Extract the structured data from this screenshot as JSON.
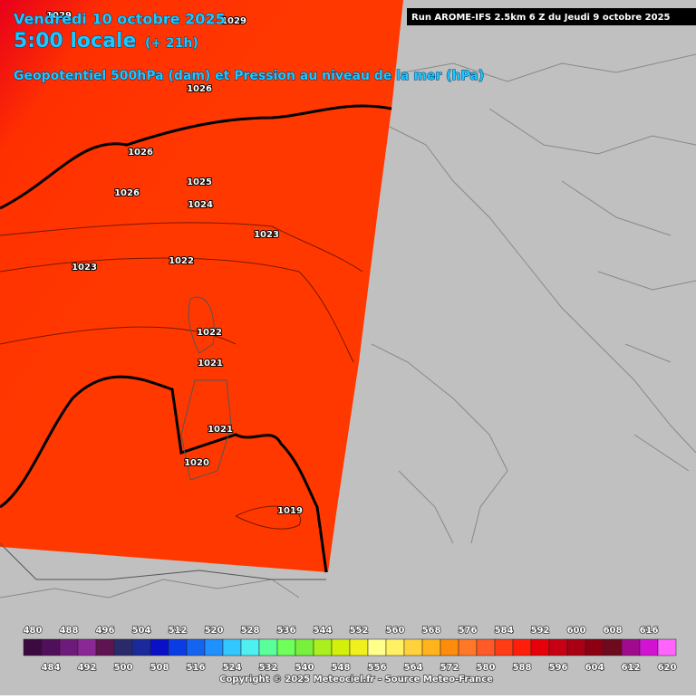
{
  "header": {
    "date": "Vendredi 10 octobre 2025",
    "time": "5:00 locale",
    "lead": "(+ 21h)",
    "subtitle": "Geopotentiel 500hPa (dam) et Pression au niveau de la mer (hPa)",
    "run": "Run AROME-IFS 2.5km 6 Z du Jeudi 9 octobre 2025"
  },
  "isobar_labels": [
    "1029",
    "1029",
    "1026",
    "1026",
    "1026",
    "1025",
    "1024",
    "1023",
    "1022",
    "1023",
    "1022",
    "1021",
    "1021",
    "1020",
    "1019"
  ],
  "legend": {
    "levels": [
      480,
      484,
      488,
      492,
      496,
      500,
      504,
      508,
      512,
      516,
      520,
      524,
      528,
      532,
      536,
      540,
      544,
      548,
      552,
      556,
      560,
      564,
      568,
      572,
      576,
      580,
      584,
      588,
      592,
      596,
      600,
      604,
      608,
      612,
      616,
      620
    ],
    "colors": [
      "#3c0a40",
      "#500f5a",
      "#6e1a7a",
      "#8a2896",
      "#5e1450",
      "#2a2a6a",
      "#1a2a9a",
      "#0a10c8",
      "#0a3ce6",
      "#1464f0",
      "#1e90ff",
      "#32c8ff",
      "#4ef0f0",
      "#5aff9a",
      "#6eff5a",
      "#78f03c",
      "#aaf01e",
      "#d2f00a",
      "#f0f01e",
      "#ffff8c",
      "#fff064",
      "#ffd23c",
      "#ffb41e",
      "#ff8c0a",
      "#ff7828",
      "#ff5a28",
      "#ff3c14",
      "#ff1e0a",
      "#e6000a",
      "#c80014",
      "#aa0014",
      "#8c0014",
      "#6e0a1e",
      "#a00a8c",
      "#d214d2",
      "#ff64ff"
    ]
  },
  "footer": {
    "copyright": "Copyright © 2025 Meteociel.fr - Source Meteo-France"
  }
}
